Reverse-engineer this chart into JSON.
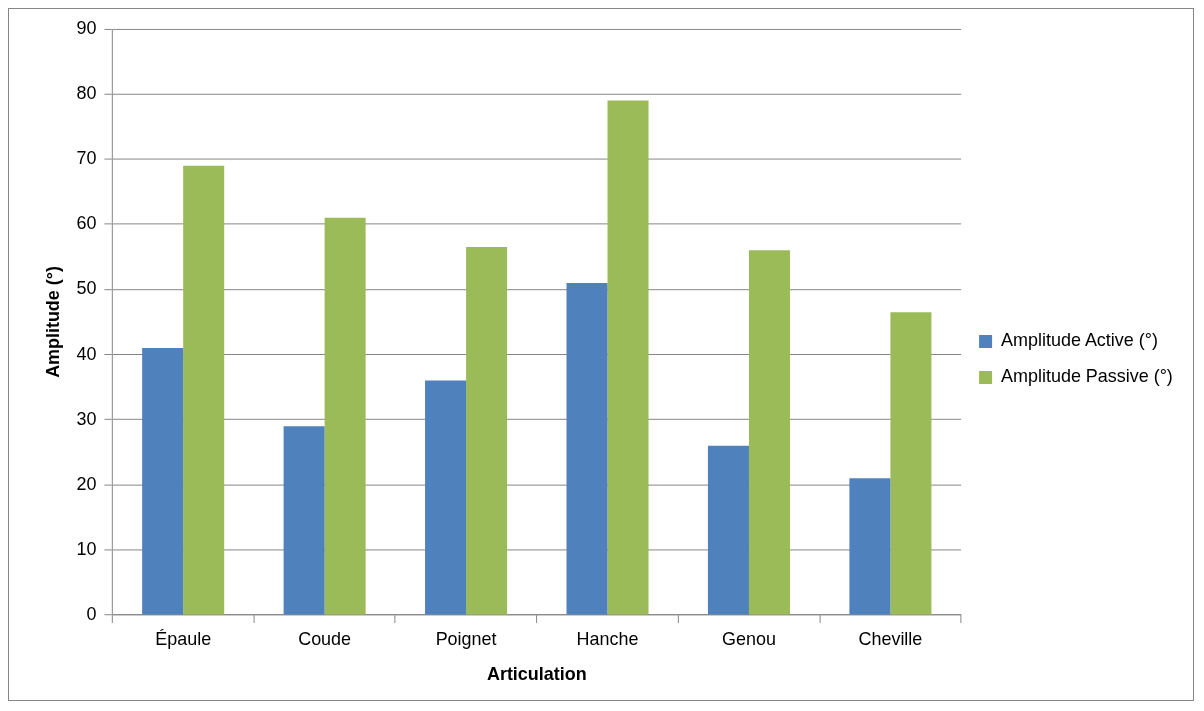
{
  "chart_data": {
    "type": "bar",
    "xlabel": "Articulation",
    "ylabel": "Amplitude (°)",
    "categories": [
      "Épaule",
      "Coude",
      "Poignet",
      "Hanche",
      "Genou",
      "Cheville"
    ],
    "series": [
      {
        "name": "Amplitude Active (°)",
        "color": "#4f81bd",
        "values": [
          41,
          29,
          36,
          51,
          26,
          21
        ]
      },
      {
        "name": "Amplitude Passive (°)",
        "color": "#9bbb59",
        "values": [
          69,
          61,
          56.5,
          79,
          56,
          46.5
        ]
      }
    ],
    "ylim": [
      0,
      90
    ],
    "yticks": [
      0,
      10,
      20,
      30,
      40,
      50,
      60,
      70,
      80,
      90
    ],
    "grid": "y",
    "legend": "right"
  }
}
